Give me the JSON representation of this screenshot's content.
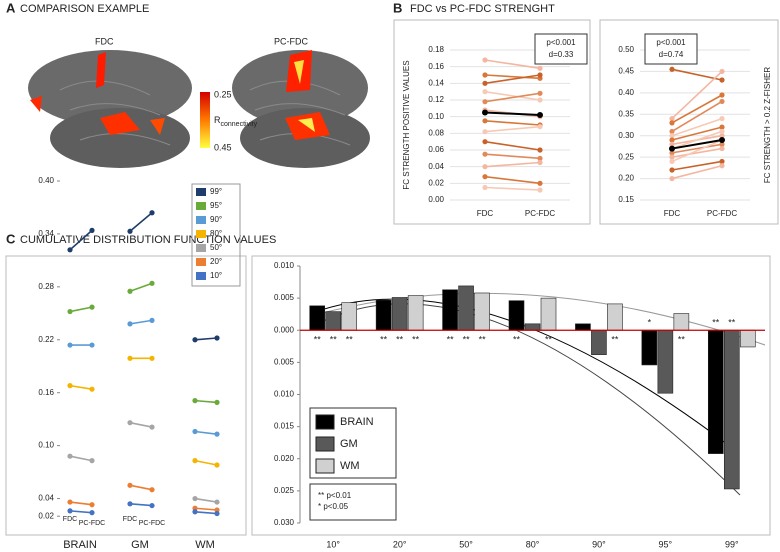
{
  "panel_a": {
    "letter": "A",
    "title": "COMPARISON EXAMPLE",
    "labels": [
      "FDC",
      "PC-FDC"
    ],
    "colorbar": {
      "ticks": [
        0.25,
        0.45
      ],
      "label": "R",
      "label_sub": "connectivity"
    }
  },
  "panel_b": {
    "letter": "B",
    "title": "FDC vs PC-FDC STRENGHT"
  },
  "panel_c": {
    "letter": "C",
    "title": "CUMULATIVE DISTRIBUTION FUNCTION VALUES"
  },
  "chart_data": [
    {
      "type": "paired-line",
      "categories": [
        "FDC",
        "PC-FDC"
      ],
      "y_label": "FC STRENGTH POSITIVE VALUES",
      "annotation": [
        "p<0.001",
        "d=0.33"
      ],
      "ylim": [
        0,
        0.18
      ],
      "yticks": [
        {
          "value": 0,
          "label": "0.00"
        },
        0.02,
        0.04,
        0.06,
        0.08,
        {
          "value": 0.1,
          "label": "0.10"
        },
        0.12,
        0.14,
        0.16,
        0.18
      ],
      "grid": true,
      "series": [
        {
          "color": "#f4b6a0",
          "values": [
            0.168,
            0.158
          ]
        },
        {
          "color": "#d9773a",
          "values": [
            0.15,
            0.146
          ]
        },
        {
          "color": "#c8622a",
          "values": [
            0.14,
            0.15
          ]
        },
        {
          "color": "#f7c9b5",
          "values": [
            0.13,
            0.12
          ]
        },
        {
          "color": "#e08a5a",
          "values": [
            0.118,
            0.128
          ]
        },
        {
          "color": "#f4b6a0",
          "values": [
            0.108,
            0.1
          ]
        },
        {
          "color": "#d9773a",
          "values": [
            0.095,
            0.09
          ]
        },
        {
          "color": "#f7c9b5",
          "values": [
            0.082,
            0.088
          ]
        },
        {
          "color": "#c8622a",
          "values": [
            0.07,
            0.06
          ]
        },
        {
          "color": "#e08a5a",
          "values": [
            0.055,
            0.05
          ]
        },
        {
          "color": "#f4b6a0",
          "values": [
            0.04,
            0.045
          ]
        },
        {
          "color": "#d9773a",
          "values": [
            0.028,
            0.02
          ]
        },
        {
          "color": "#f7c9b5",
          "values": [
            0.015,
            0.012
          ]
        }
      ],
      "mean": {
        "color": "#000000",
        "values": [
          0.105,
          0.102
        ]
      }
    },
    {
      "type": "paired-line",
      "categories": [
        "FDC",
        "PC-FDC"
      ],
      "y_label": "FC STRENGTH > 0.2 Z-FISHER",
      "annotation": [
        "p<0.001",
        "d=0.74"
      ],
      "ylim": [
        0.15,
        0.5
      ],
      "yticks": [
        0.15,
        {
          "value": 0.2,
          "label": "0.20"
        },
        0.25,
        {
          "value": 0.3,
          "label": "0.30"
        },
        0.35,
        {
          "value": 0.4,
          "label": "0.40"
        },
        0.45,
        {
          "value": 0.5,
          "label": "0.50"
        }
      ],
      "grid": true,
      "series": [
        {
          "color": "#c8622a",
          "values": [
            0.455,
            0.43
          ]
        },
        {
          "color": "#f4b6a0",
          "values": [
            0.34,
            0.45
          ]
        },
        {
          "color": "#d9773a",
          "values": [
            0.33,
            0.395
          ]
        },
        {
          "color": "#e08a5a",
          "values": [
            0.31,
            0.38
          ]
        },
        {
          "color": "#f7c9b5",
          "values": [
            0.3,
            0.34
          ]
        },
        {
          "color": "#d9773a",
          "values": [
            0.29,
            0.32
          ]
        },
        {
          "color": "#f4b6a0",
          "values": [
            0.28,
            0.3
          ]
        },
        {
          "color": "#f7c9b5",
          "values": [
            0.27,
            0.31
          ]
        },
        {
          "color": "#e08a5a",
          "values": [
            0.26,
            0.28
          ]
        },
        {
          "color": "#f4b6a0",
          "values": [
            0.25,
            0.27
          ]
        },
        {
          "color": "#f7c9b5",
          "values": [
            0.24,
            0.29
          ]
        },
        {
          "color": "#c8622a",
          "values": [
            0.22,
            0.24
          ]
        },
        {
          "color": "#f4b6a0",
          "values": [
            0.2,
            0.23
          ]
        }
      ],
      "mean": {
        "color": "#000000",
        "values": [
          0.27,
          0.29
        ]
      }
    },
    {
      "type": "slope",
      "categories": [
        "BRAIN",
        "GM",
        "WM"
      ],
      "pair_labels": [
        "FDC",
        "PC-FDC"
      ],
      "ylim": [
        0.01,
        0.4
      ],
      "yticks": [
        0.02,
        0.04,
        {
          "value": 0.1,
          "label": "0.10"
        },
        0.16,
        0.22,
        0.28,
        0.34,
        {
          "value": 0.4,
          "label": "0.40"
        }
      ],
      "series": [
        {
          "name": "99°",
          "color": "#1f3d6b",
          "values": [
            [
              0.322,
              0.344
            ],
            [
              0.343,
              0.364
            ],
            [
              0.22,
              0.222
            ]
          ]
        },
        {
          "name": "95°",
          "color": "#6aaa3a",
          "values": [
            [
              0.252,
              0.257
            ],
            [
              0.275,
              0.284
            ],
            [
              0.151,
              0.149
            ]
          ]
        },
        {
          "name": "90°",
          "color": "#5b9bd5",
          "values": [
            [
              0.214,
              0.214
            ],
            [
              0.238,
              0.242
            ],
            [
              0.116,
              0.113
            ]
          ]
        },
        {
          "name": "80°",
          "color": "#f4b400",
          "values": [
            [
              0.168,
              0.164
            ],
            [
              0.199,
              0.199
            ],
            [
              0.083,
              0.078
            ]
          ]
        },
        {
          "name": "50°",
          "color": "#a5a5a5",
          "values": [
            [
              0.088,
              0.083
            ],
            [
              0.126,
              0.121
            ],
            [
              0.04,
              0.036
            ]
          ]
        },
        {
          "name": "20°",
          "color": "#ed7d31",
          "values": [
            [
              0.036,
              0.033
            ],
            [
              0.055,
              0.05
            ],
            [
              0.029,
              0.027
            ]
          ]
        },
        {
          "name": "10°",
          "color": "#4472c4",
          "values": [
            [
              0.026,
              0.024
            ],
            [
              0.034,
              0.032
            ],
            [
              0.025,
              0.023
            ]
          ]
        }
      ]
    },
    {
      "type": "bar",
      "categories": [
        "10°",
        "20°",
        "50°",
        "80°",
        "90°",
        "95°",
        "99°"
      ],
      "ylim": [
        -0.03,
        0.01
      ],
      "yticks": [
        {
          "value": -0.03,
          "label": "0.030"
        },
        {
          "value": -0.025,
          "label": "0.025"
        },
        {
          "value": -0.02,
          "label": "0.020"
        },
        {
          "value": -0.015,
          "label": "0.015"
        },
        {
          "value": -0.01,
          "label": "0.010"
        },
        {
          "value": -0.005,
          "label": "0.005"
        },
        {
          "value": 0,
          "label": "0.000"
        },
        {
          "value": 0.005,
          "label": "0.005"
        },
        {
          "value": 0.01,
          "label": "0.010"
        }
      ],
      "baseline_color": "#c00000",
      "series": [
        {
          "name": "BRAIN",
          "color": "#000000",
          "values": [
            0.0038,
            0.0047,
            0.0063,
            0.0046,
            0.001,
            -0.0054,
            -0.0192
          ],
          "significance": [
            "**",
            "**",
            "**",
            "**",
            null,
            "*",
            "**"
          ]
        },
        {
          "name": "GM",
          "color": "#595959",
          "values": [
            0.0029,
            0.0051,
            0.0069,
            0.001,
            -0.0038,
            -0.0098,
            -0.0247
          ],
          "significance": [
            "**",
            "**",
            "**",
            null,
            null,
            null,
            "**"
          ]
        },
        {
          "name": "WM",
          "color": "#d0d0d0",
          "values": [
            0.0043,
            0.0054,
            0.0058,
            0.005,
            0.0041,
            0.0026,
            -0.0026
          ],
          "significance": [
            "**",
            "**",
            "**",
            "**",
            "**",
            "**",
            null
          ]
        }
      ],
      "note": [
        "** p<0.01",
        "* p<0.05"
      ]
    }
  ]
}
